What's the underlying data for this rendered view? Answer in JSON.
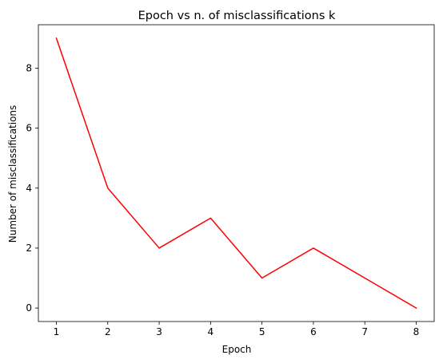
{
  "chart_data": {
    "type": "line",
    "title": "Epoch vs n. of misclassifications k",
    "xlabel": "Epoch",
    "ylabel": "Number of misclassifications",
    "x": [
      1,
      2,
      3,
      4,
      5,
      6,
      7,
      8
    ],
    "series": [
      {
        "values": [
          9,
          4,
          2,
          3,
          1,
          2,
          1,
          0
        ],
        "color": "#ff0000"
      }
    ],
    "xticks": [
      1,
      2,
      3,
      4,
      5,
      6,
      7,
      8
    ],
    "yticks": [
      0,
      2,
      4,
      6,
      8
    ],
    "xlim": [
      0.65,
      8.35
    ],
    "ylim": [
      -0.45,
      9.45
    ],
    "grid": false,
    "legend": "none"
  }
}
